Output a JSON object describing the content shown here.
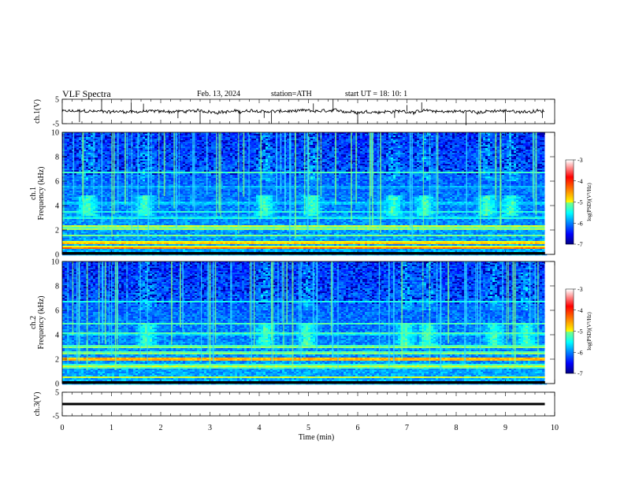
{
  "header": {
    "title": "VLF  Spectra",
    "date": "Feb. 13, 2024",
    "station": "station=ATH",
    "start_ut": "start  UT  =    18: 10: 1"
  },
  "chart_data": [
    {
      "type": "line",
      "name": "ch1-waveform",
      "ylabel": "ch.1(V)",
      "ylim": [
        -5,
        5
      ],
      "yticks": [
        "5",
        "-5"
      ],
      "xlim": [
        0,
        10
      ],
      "x_end": 9.8,
      "baseline": 0,
      "noise_amplitude": 0.6,
      "spikes_t": [
        0.35,
        0.8,
        1.4,
        1.65,
        2.35,
        2.8,
        3.6,
        4.1,
        4.25,
        5.1,
        5.5,
        6.0,
        6.75,
        7.0,
        7.3,
        8.2,
        9.0,
        9.75
      ]
    },
    {
      "type": "heatmap",
      "name": "ch1-spectrogram",
      "ylabel": "ch.1\nFrequency  (kHz)",
      "ylim": [
        0,
        10
      ],
      "yticks": [
        "0",
        "2",
        "4",
        "6",
        "8",
        "10"
      ],
      "xlim": [
        0,
        10
      ],
      "x_end": 9.8,
      "colorbar": {
        "label": "log(PSD)(V²/Hz)",
        "range": [
          -7,
          -3
        ],
        "ticks": [
          "-3",
          "-4",
          "-5",
          "-6",
          "-7"
        ]
      },
      "bands": [
        {
          "f": 0.15,
          "width": 0.1,
          "level": 0.15
        },
        {
          "f": 0.55,
          "width": 0.1,
          "level": 0.85
        },
        {
          "f": 0.95,
          "width": 0.15,
          "level": 0.75
        },
        {
          "f": 1.55,
          "width": 0.1,
          "level": 0.5
        },
        {
          "f": 2.05,
          "width": 0.1,
          "level": 0.55
        },
        {
          "f": 2.3,
          "width": 0.15,
          "level": 0.6
        },
        {
          "f": 3.0,
          "width": 0.1,
          "level": 0.45
        },
        {
          "f": 3.5,
          "width": 0.1,
          "level": 0.42
        },
        {
          "f": 4.2,
          "width": 0.1,
          "level": 0.4
        },
        {
          "f": 5.5,
          "width": 0.1,
          "level": 0.35
        },
        {
          "f": 6.7,
          "width": 0.1,
          "level": 0.45
        }
      ],
      "tweek_bursts_t": [
        0.5,
        1.65,
        4.1,
        5.05,
        6.7,
        7.35,
        8.6,
        9.1
      ]
    },
    {
      "type": "heatmap",
      "name": "ch2-spectrogram",
      "ylabel": "ch.2\nFrequency  (kHz)",
      "ylim": [
        0,
        10
      ],
      "yticks": [
        "0",
        "2",
        "4",
        "6",
        "8",
        "10"
      ],
      "xlim": [
        0,
        10
      ],
      "x_end": 9.8,
      "colorbar": {
        "label": "log(PSD)(V²/Hz)",
        "range": [
          -7,
          -3
        ],
        "ticks": [
          "-3",
          "-4",
          "-5",
          "-6",
          "-7"
        ]
      },
      "bands": [
        {
          "f": 0.15,
          "width": 0.1,
          "level": 0.25
        },
        {
          "f": 0.5,
          "width": 0.1,
          "level": 0.6
        },
        {
          "f": 1.4,
          "width": 0.15,
          "level": 0.6
        },
        {
          "f": 2.0,
          "width": 0.15,
          "level": 0.8
        },
        {
          "f": 2.5,
          "width": 0.1,
          "level": 0.6
        },
        {
          "f": 3.0,
          "width": 0.15,
          "level": 0.55
        },
        {
          "f": 4.1,
          "width": 0.1,
          "level": 0.5
        },
        {
          "f": 4.9,
          "width": 0.1,
          "level": 0.45
        },
        {
          "f": 6.7,
          "width": 0.1,
          "level": 0.4
        }
      ],
      "tweek_bursts_t": [
        1.7,
        4.1,
        4.95,
        6.95,
        7.4,
        8.75,
        9.4
      ]
    },
    {
      "type": "line",
      "name": "ch3-waveform",
      "ylabel": "ch.3(V)",
      "ylim": [
        -5,
        5
      ],
      "yticks": [
        "5",
        "-5"
      ],
      "xlim": [
        0,
        10
      ],
      "x_end": 9.8,
      "baseline": 0,
      "thickness_v": 1.0
    }
  ],
  "x_axis": {
    "label": "Time  (min)",
    "ticks": [
      "0",
      "1",
      "2",
      "3",
      "4",
      "5",
      "6",
      "7",
      "8",
      "9",
      "10"
    ]
  }
}
